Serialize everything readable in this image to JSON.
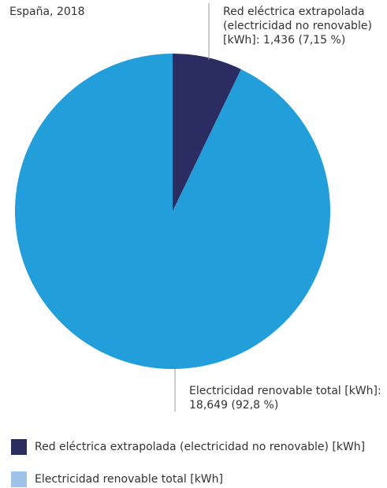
{
  "chart_data": {
    "type": "pie",
    "title": "España, 2018",
    "categories": [
      "Red eléctrica extrapolada (electricidad no renovable) [kWh]",
      "Electricidad renovable total [kWh]"
    ],
    "values": [
      1.436,
      18.649
    ],
    "value_labels": [
      "1,436 (7,15 %)",
      "18,649 (92,8 %)"
    ],
    "annotations": [
      "Red eléctrica extrapolada (electricidad no renovable) [kWh]:",
      "Electricidad renovable total [kWh]:"
    ],
    "colors": [
      "#2a2c62",
      "#229fdb"
    ],
    "legend_colors": [
      "#2a2c62",
      "#9dc3e8"
    ]
  }
}
